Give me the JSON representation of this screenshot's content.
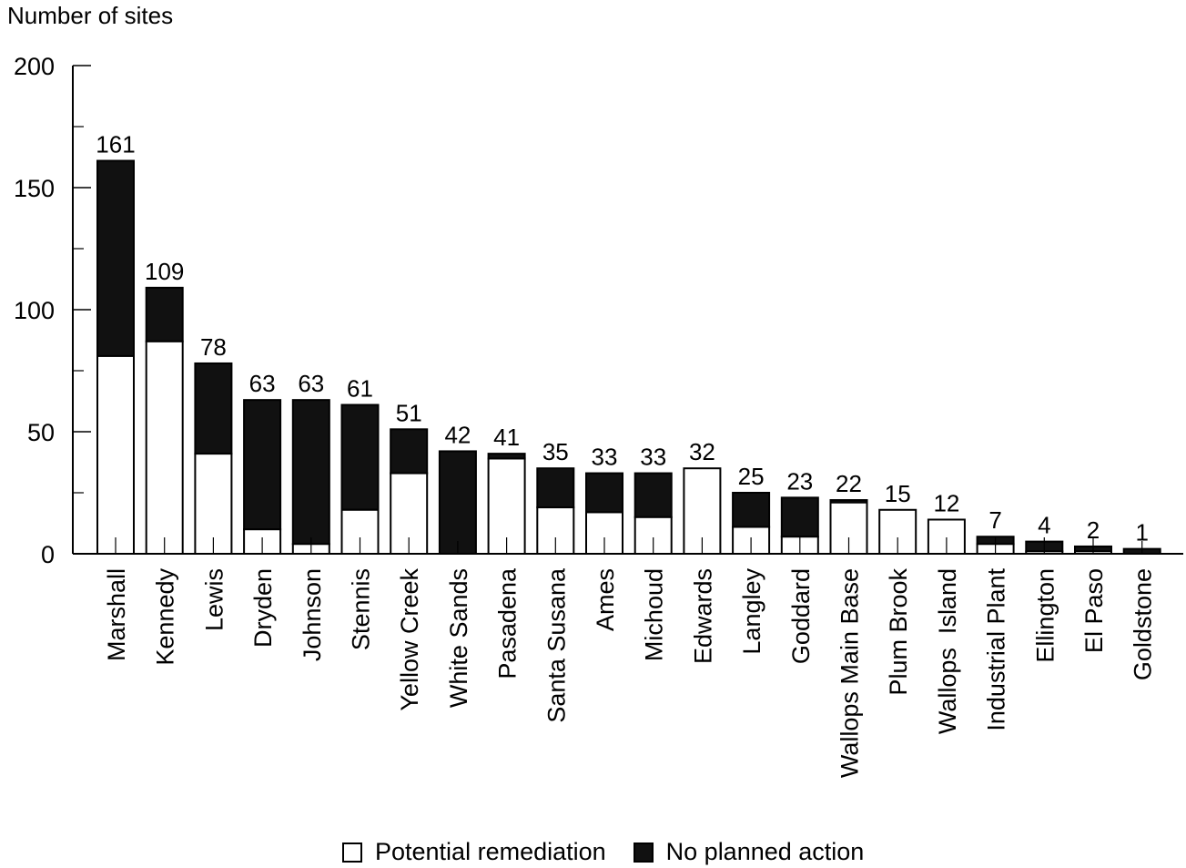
{
  "chart_data": {
    "type": "bar",
    "stacked": true,
    "ylabel": "Number of sites",
    "xlabel": "",
    "ylim": [
      0,
      200
    ],
    "yticks": [
      0,
      50,
      100,
      150,
      200
    ],
    "grid": false,
    "legend_position": "bottom",
    "categories": [
      "Marshall",
      "Kennedy",
      "Lewis",
      "Dryden",
      "Johnson",
      "Stennis",
      "Yellow Creek",
      "White Sands",
      "Pasadena",
      "Santa Susana",
      "Ames",
      "Michoud",
      "Edwards",
      "Langley",
      "Goddard",
      "Wallops Main Base",
      "Plum Brook",
      "Wallops  Island",
      "Industrial Plant",
      "Ellington",
      "El Paso",
      "Goldstone"
    ],
    "series": [
      {
        "name": "Potential remediation",
        "color": "#ffffff",
        "values": [
          81,
          87,
          41,
          10,
          4,
          18,
          33,
          0,
          39,
          19,
          17,
          15,
          35,
          11,
          7,
          21,
          18,
          14,
          4,
          1,
          1,
          0
        ]
      },
      {
        "name": "No planned action",
        "color": "#111111",
        "values": [
          80,
          22,
          37,
          53,
          59,
          43,
          18,
          42,
          2,
          16,
          16,
          18,
          -3,
          14,
          16,
          1,
          -3,
          -2,
          3,
          3,
          1,
          1
        ]
      }
    ],
    "totals": [
      161,
      109,
      78,
      63,
      63,
      61,
      51,
      42,
      41,
      35,
      33,
      33,
      32,
      25,
      23,
      22,
      15,
      12,
      7,
      4,
      2,
      1
    ],
    "data_labels": [
      "161",
      "109",
      "78",
      "63",
      "63",
      "61",
      "51",
      "42",
      "41",
      "35",
      "33",
      "33",
      "32",
      "25",
      "23",
      "22",
      "15",
      "12",
      "7",
      "4",
      "2",
      "1"
    ],
    "tick_labels": [
      "0",
      "50",
      "100",
      "150",
      "200"
    ]
  },
  "legend": {
    "items": [
      {
        "label": "Potential remediation"
      },
      {
        "label": "No planned action"
      }
    ]
  }
}
